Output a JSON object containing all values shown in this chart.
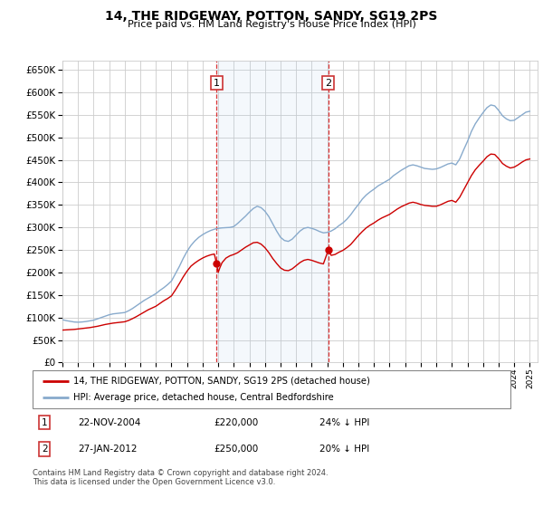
{
  "title": "14, THE RIDGEWAY, POTTON, SANDY, SG19 2PS",
  "subtitle": "Price paid vs. HM Land Registry's House Price Index (HPI)",
  "ylim": [
    0,
    670000
  ],
  "yticks": [
    0,
    50000,
    100000,
    150000,
    200000,
    250000,
    300000,
    350000,
    400000,
    450000,
    500000,
    550000,
    600000,
    650000
  ],
  "xlim": [
    1995,
    2025.5
  ],
  "background_color": "#ffffff",
  "grid_color": "#cccccc",
  "hpi_color": "#88aacc",
  "price_color": "#cc0000",
  "sale1_x": 2004.89,
  "sale1_y": 220000,
  "sale2_x": 2012.07,
  "sale2_y": 250000,
  "sale1_date": "22-NOV-2004",
  "sale1_price": "£220,000",
  "sale1_hpi": "24% ↓ HPI",
  "sale2_date": "27-JAN-2012",
  "sale2_price": "£250,000",
  "sale2_hpi": "20% ↓ HPI",
  "legend_label_red": "14, THE RIDGEWAY, POTTON, SANDY, SG19 2PS (detached house)",
  "legend_label_blue": "HPI: Average price, detached house, Central Bedfordshire",
  "footer": "Contains HM Land Registry data © Crown copyright and database right 2024.\nThis data is licensed under the Open Government Licence v3.0.",
  "hpi_data": [
    [
      1995.0,
      95000
    ],
    [
      1995.25,
      93000
    ],
    [
      1995.5,
      91500
    ],
    [
      1995.75,
      90000
    ],
    [
      1996.0,
      89500
    ],
    [
      1996.25,
      90000
    ],
    [
      1996.5,
      91000
    ],
    [
      1996.75,
      92500
    ],
    [
      1997.0,
      94000
    ],
    [
      1997.25,
      97000
    ],
    [
      1997.5,
      100000
    ],
    [
      1997.75,
      103000
    ],
    [
      1998.0,
      106000
    ],
    [
      1998.25,
      108000
    ],
    [
      1998.5,
      109000
    ],
    [
      1998.75,
      110000
    ],
    [
      1999.0,
      111000
    ],
    [
      1999.25,
      115000
    ],
    [
      1999.5,
      120000
    ],
    [
      1999.75,
      126000
    ],
    [
      2000.0,
      132000
    ],
    [
      2000.25,
      138000
    ],
    [
      2000.5,
      143000
    ],
    [
      2000.75,
      148000
    ],
    [
      2001.0,
      153000
    ],
    [
      2001.25,
      160000
    ],
    [
      2001.5,
      166000
    ],
    [
      2001.75,
      173000
    ],
    [
      2002.0,
      181000
    ],
    [
      2002.25,
      197000
    ],
    [
      2002.5,
      213000
    ],
    [
      2002.75,
      231000
    ],
    [
      2003.0,
      247000
    ],
    [
      2003.25,
      260000
    ],
    [
      2003.5,
      270000
    ],
    [
      2003.75,
      278000
    ],
    [
      2004.0,
      284000
    ],
    [
      2004.25,
      289000
    ],
    [
      2004.5,
      293000
    ],
    [
      2004.75,
      296000
    ],
    [
      2005.0,
      298000
    ],
    [
      2005.25,
      299000
    ],
    [
      2005.5,
      299500
    ],
    [
      2005.75,
      300000
    ],
    [
      2006.0,
      302000
    ],
    [
      2006.25,
      309000
    ],
    [
      2006.5,
      317000
    ],
    [
      2006.75,
      325000
    ],
    [
      2007.0,
      334000
    ],
    [
      2007.25,
      342000
    ],
    [
      2007.5,
      347000
    ],
    [
      2007.75,
      344000
    ],
    [
      2008.0,
      336000
    ],
    [
      2008.25,
      324000
    ],
    [
      2008.5,
      308000
    ],
    [
      2008.75,
      292000
    ],
    [
      2009.0,
      278000
    ],
    [
      2009.25,
      271000
    ],
    [
      2009.5,
      269000
    ],
    [
      2009.75,
      274000
    ],
    [
      2010.0,
      283000
    ],
    [
      2010.25,
      292000
    ],
    [
      2010.5,
      298000
    ],
    [
      2010.75,
      300000
    ],
    [
      2011.0,
      298000
    ],
    [
      2011.25,
      295000
    ],
    [
      2011.5,
      291000
    ],
    [
      2011.75,
      288000
    ],
    [
      2012.0,
      289000
    ],
    [
      2012.25,
      292000
    ],
    [
      2012.5,
      297000
    ],
    [
      2012.75,
      304000
    ],
    [
      2013.0,
      310000
    ],
    [
      2013.25,
      318000
    ],
    [
      2013.5,
      328000
    ],
    [
      2013.75,
      340000
    ],
    [
      2014.0,
      351000
    ],
    [
      2014.25,
      363000
    ],
    [
      2014.5,
      372000
    ],
    [
      2014.75,
      379000
    ],
    [
      2015.0,
      385000
    ],
    [
      2015.25,
      392000
    ],
    [
      2015.5,
      397000
    ],
    [
      2015.75,
      402000
    ],
    [
      2016.0,
      407000
    ],
    [
      2016.25,
      415000
    ],
    [
      2016.5,
      421000
    ],
    [
      2016.75,
      427000
    ],
    [
      2017.0,
      432000
    ],
    [
      2017.25,
      437000
    ],
    [
      2017.5,
      439000
    ],
    [
      2017.75,
      437000
    ],
    [
      2018.0,
      434000
    ],
    [
      2018.25,
      431000
    ],
    [
      2018.5,
      430000
    ],
    [
      2018.75,
      429000
    ],
    [
      2019.0,
      430000
    ],
    [
      2019.25,
      433000
    ],
    [
      2019.5,
      437000
    ],
    [
      2019.75,
      441000
    ],
    [
      2020.0,
      443000
    ],
    [
      2020.25,
      439000
    ],
    [
      2020.5,
      452000
    ],
    [
      2020.75,
      472000
    ],
    [
      2021.0,
      491000
    ],
    [
      2021.25,
      513000
    ],
    [
      2021.5,
      530000
    ],
    [
      2021.75,
      543000
    ],
    [
      2022.0,
      555000
    ],
    [
      2022.25,
      566000
    ],
    [
      2022.5,
      572000
    ],
    [
      2022.75,
      570000
    ],
    [
      2023.0,
      560000
    ],
    [
      2023.25,
      548000
    ],
    [
      2023.5,
      541000
    ],
    [
      2023.75,
      537000
    ],
    [
      2024.0,
      538000
    ],
    [
      2024.25,
      544000
    ],
    [
      2024.5,
      550000
    ],
    [
      2024.75,
      556000
    ],
    [
      2025.0,
      558000
    ]
  ],
  "price_data": [
    [
      1995.0,
      72000
    ],
    [
      1995.25,
      72500
    ],
    [
      1995.5,
      73000
    ],
    [
      1995.75,
      73500
    ],
    [
      1996.0,
      74500
    ],
    [
      1996.25,
      75500
    ],
    [
      1996.5,
      76500
    ],
    [
      1996.75,
      77500
    ],
    [
      1997.0,
      79000
    ],
    [
      1997.25,
      80500
    ],
    [
      1997.5,
      82500
    ],
    [
      1997.75,
      84500
    ],
    [
      1998.0,
      86000
    ],
    [
      1998.25,
      87500
    ],
    [
      1998.5,
      88500
    ],
    [
      1998.75,
      89500
    ],
    [
      1999.0,
      90500
    ],
    [
      1999.25,
      93500
    ],
    [
      1999.5,
      97500
    ],
    [
      1999.75,
      102000
    ],
    [
      2000.0,
      107000
    ],
    [
      2000.25,
      112000
    ],
    [
      2000.5,
      117000
    ],
    [
      2000.75,
      121000
    ],
    [
      2001.0,
      125000
    ],
    [
      2001.25,
      131000
    ],
    [
      2001.5,
      137000
    ],
    [
      2001.75,
      142000
    ],
    [
      2002.0,
      148000
    ],
    [
      2002.25,
      161000
    ],
    [
      2002.5,
      175000
    ],
    [
      2002.75,
      190000
    ],
    [
      2003.0,
      203000
    ],
    [
      2003.25,
      214000
    ],
    [
      2003.5,
      221000
    ],
    [
      2003.75,
      227000
    ],
    [
      2004.0,
      232000
    ],
    [
      2004.25,
      236000
    ],
    [
      2004.5,
      239000
    ],
    [
      2004.75,
      241000
    ],
    [
      2004.89,
      220000
    ],
    [
      2005.0,
      200000
    ],
    [
      2005.1,
      210000
    ],
    [
      2005.25,
      222000
    ],
    [
      2005.5,
      232000
    ],
    [
      2005.75,
      237000
    ],
    [
      2006.0,
      240000
    ],
    [
      2006.25,
      244000
    ],
    [
      2006.5,
      250000
    ],
    [
      2006.75,
      256000
    ],
    [
      2007.0,
      261000
    ],
    [
      2007.25,
      266000
    ],
    [
      2007.5,
      267000
    ],
    [
      2007.75,
      263000
    ],
    [
      2008.0,
      255000
    ],
    [
      2008.25,
      244000
    ],
    [
      2008.5,
      231000
    ],
    [
      2008.75,
      220000
    ],
    [
      2009.0,
      210000
    ],
    [
      2009.25,
      205000
    ],
    [
      2009.5,
      204000
    ],
    [
      2009.75,
      208000
    ],
    [
      2010.0,
      215000
    ],
    [
      2010.25,
      222000
    ],
    [
      2010.5,
      227000
    ],
    [
      2010.75,
      229000
    ],
    [
      2011.0,
      227000
    ],
    [
      2011.25,
      224000
    ],
    [
      2011.5,
      221000
    ],
    [
      2011.75,
      219000
    ],
    [
      2012.07,
      250000
    ],
    [
      2012.25,
      238000
    ],
    [
      2012.5,
      240000
    ],
    [
      2012.75,
      245000
    ],
    [
      2013.0,
      249000
    ],
    [
      2013.25,
      255000
    ],
    [
      2013.5,
      262000
    ],
    [
      2013.75,
      272000
    ],
    [
      2014.0,
      282000
    ],
    [
      2014.25,
      291000
    ],
    [
      2014.5,
      299000
    ],
    [
      2014.75,
      305000
    ],
    [
      2015.0,
      310000
    ],
    [
      2015.25,
      316000
    ],
    [
      2015.5,
      321000
    ],
    [
      2015.75,
      325000
    ],
    [
      2016.0,
      329000
    ],
    [
      2016.25,
      335000
    ],
    [
      2016.5,
      341000
    ],
    [
      2016.75,
      346000
    ],
    [
      2017.0,
      350000
    ],
    [
      2017.25,
      354000
    ],
    [
      2017.5,
      356000
    ],
    [
      2017.75,
      354000
    ],
    [
      2018.0,
      351000
    ],
    [
      2018.25,
      349000
    ],
    [
      2018.5,
      348000
    ],
    [
      2018.75,
      347000
    ],
    [
      2019.0,
      347000
    ],
    [
      2019.25,
      350000
    ],
    [
      2019.5,
      354000
    ],
    [
      2019.75,
      358000
    ],
    [
      2020.0,
      360000
    ],
    [
      2020.25,
      356000
    ],
    [
      2020.5,
      367000
    ],
    [
      2020.75,
      383000
    ],
    [
      2021.0,
      399000
    ],
    [
      2021.25,
      415000
    ],
    [
      2021.5,
      428000
    ],
    [
      2021.75,
      438000
    ],
    [
      2022.0,
      447000
    ],
    [
      2022.25,
      457000
    ],
    [
      2022.5,
      463000
    ],
    [
      2022.75,
      462000
    ],
    [
      2023.0,
      453000
    ],
    [
      2023.25,
      442000
    ],
    [
      2023.5,
      436000
    ],
    [
      2023.75,
      432000
    ],
    [
      2024.0,
      434000
    ],
    [
      2024.25,
      439000
    ],
    [
      2024.5,
      445000
    ],
    [
      2024.75,
      450000
    ],
    [
      2025.0,
      452000
    ]
  ]
}
